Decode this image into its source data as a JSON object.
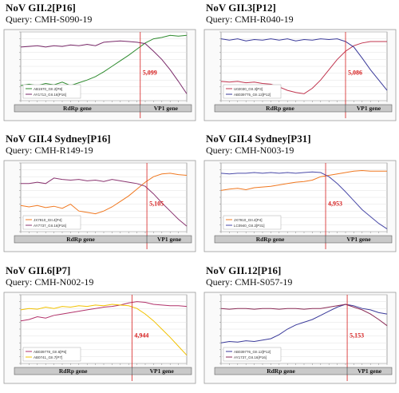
{
  "panels": [
    {
      "title": "NoV GII.2[P16]",
      "query": "Query: CMH-S090-19",
      "breakpoint_label": "5,099",
      "gene_left": "RdRp gene",
      "gene_right": "VP1 gene",
      "legend": [
        "AB1970_GII.2[P8]",
        "AY1713_GII.16[P16]"
      ]
    },
    {
      "title": "NoV GII.3[P12]",
      "query": "Query: CMH-R040-19",
      "breakpoint_label": "5,086",
      "gene_left": "RdRp gene",
      "gene_right": "VP1 gene",
      "legend": [
        "U02030_GII.3[P3]",
        "AB039775_GII.12[P12]"
      ]
    },
    {
      "title": "NoV GII.4 Sydney[P16]",
      "query": "Query: CMH-R149-19",
      "breakpoint_label": "5,105",
      "gene_left": "RdRp gene",
      "gene_right": "VP1 gene",
      "legend": [
        "JX7910_GII.4[P4]",
        "AY7737_GII.16[P16]"
      ]
    },
    {
      "title": "NoV GII.4 Sydney[P31]",
      "query": "Query: CMH-N003-19",
      "breakpoint_label": "4,953",
      "gene_left": "RdRp gene",
      "gene_right": "VP1 gene",
      "legend": [
        "JX7910_GII.4[P4]",
        "LC0940_GII.2[P31]"
      ]
    },
    {
      "title": "NoV GII.6[P7]",
      "query": "Query: CMH-N002-19",
      "breakpoint_label": "4,944",
      "gene_left": "RdRp gene",
      "gene_right": "VP1 gene",
      "legend": [
        "AB039778_GII.6[P6]",
        "AB0741_GII.7[P7]"
      ]
    },
    {
      "title": "NoV GII.12[P16]",
      "query": "Query: CMH-S057-19",
      "breakpoint_label": "5,153",
      "gene_left": "RdRp gene",
      "gene_right": "VP1 gene",
      "legend": [
        "AB039776_GII.12[P12]",
        "AY1737_GII.16[P16]"
      ]
    }
  ],
  "chart_data": [
    {
      "type": "line",
      "x": [
        0,
        0.05,
        0.1,
        0.15,
        0.2,
        0.25,
        0.3,
        0.35,
        0.4,
        0.45,
        0.5,
        0.55,
        0.6,
        0.65,
        0.7,
        0.75,
        0.8,
        0.85,
        0.9,
        0.95,
        1
      ],
      "series": [
        {
          "name": "AB1970_GII.2[P8]",
          "color": "#2e8b2e",
          "values": [
            0.22,
            0.24,
            0.22,
            0.25,
            0.23,
            0.27,
            0.22,
            0.26,
            0.3,
            0.35,
            0.42,
            0.5,
            0.58,
            0.66,
            0.75,
            0.84,
            0.9,
            0.92,
            0.95,
            0.94,
            0.95
          ]
        },
        {
          "name": "AY1713_GII.16[P16]",
          "color": "#7a2a6a",
          "values": [
            0.78,
            0.79,
            0.8,
            0.78,
            0.8,
            0.79,
            0.81,
            0.8,
            0.82,
            0.8,
            0.85,
            0.86,
            0.87,
            0.86,
            0.85,
            0.83,
            0.72,
            0.6,
            0.45,
            0.28,
            0.1
          ]
        }
      ],
      "breakpoint": 5099,
      "breakpoint_x": 0.72,
      "ylim": [
        0,
        1
      ],
      "xlim": [
        0,
        1
      ],
      "accent": "#d61f1f"
    },
    {
      "type": "line",
      "x": [
        0,
        0.05,
        0.1,
        0.15,
        0.2,
        0.25,
        0.3,
        0.35,
        0.4,
        0.45,
        0.5,
        0.55,
        0.6,
        0.65,
        0.7,
        0.75,
        0.8,
        0.85,
        0.9,
        0.95,
        1
      ],
      "series": [
        {
          "name": "U02030_GII.3[P3]",
          "color": "#c0344e",
          "values": [
            0.28,
            0.27,
            0.28,
            0.26,
            0.27,
            0.25,
            0.24,
            0.2,
            0.15,
            0.12,
            0.1,
            0.18,
            0.3,
            0.45,
            0.6,
            0.72,
            0.8,
            0.84,
            0.86,
            0.86,
            0.86
          ]
        },
        {
          "name": "AB039775_GII.12[P12]",
          "color": "#3a3a9a",
          "values": [
            0.9,
            0.88,
            0.9,
            0.87,
            0.89,
            0.88,
            0.9,
            0.88,
            0.9,
            0.87,
            0.89,
            0.88,
            0.9,
            0.89,
            0.9,
            0.86,
            0.78,
            0.62,
            0.45,
            0.3,
            0.15
          ]
        }
      ],
      "breakpoint": 5086,
      "breakpoint_x": 0.75,
      "ylim": [
        0,
        1
      ],
      "xlim": [
        0,
        1
      ],
      "accent": "#d61f1f"
    },
    {
      "type": "line",
      "x": [
        0,
        0.05,
        0.1,
        0.15,
        0.2,
        0.25,
        0.3,
        0.35,
        0.4,
        0.45,
        0.5,
        0.55,
        0.6,
        0.65,
        0.7,
        0.75,
        0.8,
        0.85,
        0.9,
        0.95,
        1
      ],
      "series": [
        {
          "name": "JX7910_GII.4[P4]",
          "color": "#f07820",
          "values": [
            0.38,
            0.36,
            0.38,
            0.35,
            0.37,
            0.34,
            0.4,
            0.3,
            0.28,
            0.26,
            0.3,
            0.36,
            0.44,
            0.52,
            0.62,
            0.72,
            0.8,
            0.84,
            0.85,
            0.83,
            0.82
          ]
        },
        {
          "name": "AY7737_GII.16[P16]",
          "color": "#8a3570",
          "values": [
            0.7,
            0.7,
            0.72,
            0.7,
            0.78,
            0.76,
            0.75,
            0.76,
            0.74,
            0.75,
            0.73,
            0.76,
            0.74,
            0.72,
            0.7,
            0.66,
            0.55,
            0.42,
            0.3,
            0.18,
            0.08
          ]
        }
      ],
      "breakpoint": 5105,
      "breakpoint_x": 0.76,
      "ylim": [
        0,
        1
      ],
      "xlim": [
        0,
        1
      ],
      "accent": "#d61f1f"
    },
    {
      "type": "line",
      "x": [
        0,
        0.05,
        0.1,
        0.15,
        0.2,
        0.25,
        0.3,
        0.35,
        0.4,
        0.45,
        0.5,
        0.55,
        0.6,
        0.65,
        0.7,
        0.75,
        0.8,
        0.85,
        0.9,
        0.95,
        1
      ],
      "series": [
        {
          "name": "JX7910_GII.4[P4]",
          "color": "#f07820",
          "values": [
            0.6,
            0.62,
            0.63,
            0.61,
            0.64,
            0.65,
            0.66,
            0.68,
            0.7,
            0.72,
            0.73,
            0.75,
            0.8,
            0.82,
            0.84,
            0.86,
            0.88,
            0.89,
            0.88,
            0.88,
            0.88
          ]
        },
        {
          "name": "LC0940_GII.2[P31]",
          "color": "#4a4aa8",
          "values": [
            0.85,
            0.84,
            0.85,
            0.85,
            0.86,
            0.85,
            0.86,
            0.85,
            0.86,
            0.85,
            0.86,
            0.87,
            0.86,
            0.8,
            0.7,
            0.58,
            0.45,
            0.32,
            0.22,
            0.12,
            0.04
          ]
        }
      ],
      "breakpoint": 4953,
      "breakpoint_x": 0.63,
      "ylim": [
        0,
        1
      ],
      "xlim": [
        0,
        1
      ],
      "accent": "#d61f1f"
    },
    {
      "type": "line",
      "x": [
        0,
        0.05,
        0.1,
        0.15,
        0.2,
        0.25,
        0.3,
        0.35,
        0.4,
        0.45,
        0.5,
        0.55,
        0.6,
        0.65,
        0.7,
        0.75,
        0.8,
        0.85,
        0.9,
        0.95,
        1
      ],
      "series": [
        {
          "name": "AB039778_GII.6[P6]",
          "color": "#b2326a",
          "values": [
            0.62,
            0.64,
            0.68,
            0.66,
            0.7,
            0.72,
            0.74,
            0.76,
            0.78,
            0.8,
            0.82,
            0.83,
            0.85,
            0.88,
            0.9,
            0.89,
            0.86,
            0.85,
            0.84,
            0.84,
            0.83
          ]
        },
        {
          "name": "AB0741_GII.7[P7]",
          "color": "#f2c200",
          "values": [
            0.78,
            0.8,
            0.79,
            0.82,
            0.8,
            0.83,
            0.82,
            0.84,
            0.83,
            0.85,
            0.84,
            0.86,
            0.85,
            0.84,
            0.8,
            0.72,
            0.62,
            0.5,
            0.38,
            0.25,
            0.12
          ]
        }
      ],
      "breakpoint": 4944,
      "breakpoint_x": 0.67,
      "ylim": [
        0,
        1
      ],
      "xlim": [
        0,
        1
      ],
      "accent": "#d61f1f"
    },
    {
      "type": "line",
      "x": [
        0,
        0.05,
        0.1,
        0.15,
        0.2,
        0.25,
        0.3,
        0.35,
        0.4,
        0.45,
        0.5,
        0.55,
        0.6,
        0.65,
        0.7,
        0.75,
        0.8,
        0.85,
        0.9,
        0.95,
        1
      ],
      "series": [
        {
          "name": "AB039776_GII.12[P12]",
          "color": "#3a3a9a",
          "values": [
            0.3,
            0.32,
            0.31,
            0.33,
            0.32,
            0.34,
            0.36,
            0.42,
            0.5,
            0.56,
            0.6,
            0.64,
            0.7,
            0.76,
            0.82,
            0.86,
            0.84,
            0.8,
            0.78,
            0.74,
            0.72
          ]
        },
        {
          "name": "AY1737_GII.16[P16]",
          "color": "#8a2a55",
          "values": [
            0.8,
            0.79,
            0.8,
            0.8,
            0.79,
            0.8,
            0.8,
            0.79,
            0.8,
            0.8,
            0.79,
            0.8,
            0.8,
            0.82,
            0.84,
            0.86,
            0.82,
            0.78,
            0.72,
            0.64,
            0.55
          ]
        }
      ],
      "breakpoint": 5153,
      "breakpoint_x": 0.76,
      "ylim": [
        0,
        1
      ],
      "xlim": [
        0,
        1
      ],
      "accent": "#d61f1f"
    }
  ]
}
